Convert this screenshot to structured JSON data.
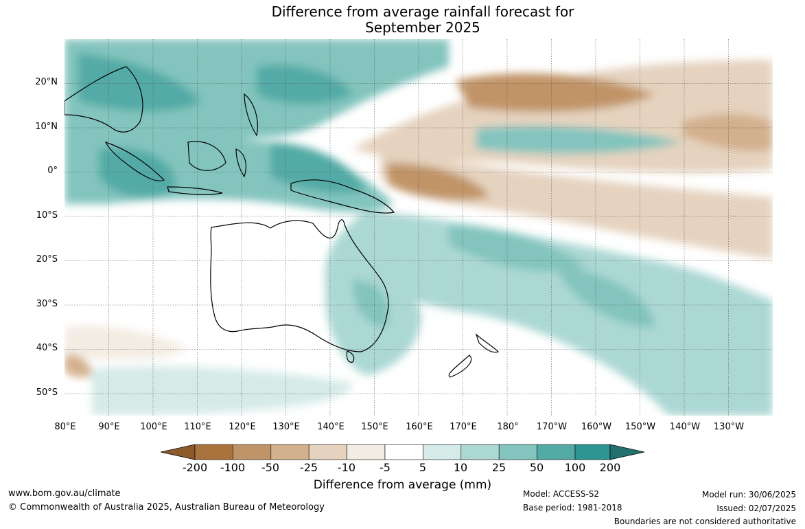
{
  "title": {
    "line1": "Difference from average rainfall forecast for",
    "line2": "September 2025"
  },
  "map": {
    "projection": "equirectangular",
    "lon_range": [
      80,
      240
    ],
    "lat_range": [
      -55,
      30
    ],
    "gridlines": true,
    "lat_ticks": [
      "20°N",
      "10°N",
      "0°",
      "10°S",
      "20°S",
      "30°S",
      "40°S",
      "50°S"
    ],
    "lon_ticks": [
      "80°E",
      "90°E",
      "100°E",
      "110°E",
      "120°E",
      "130°E",
      "140°E",
      "150°E",
      "160°E",
      "170°E",
      "180°",
      "170°W",
      "160°W",
      "150°W",
      "140°W",
      "130°W"
    ]
  },
  "colorbar": {
    "labels": [
      "-200",
      "-100",
      "-50",
      "-25",
      "-10",
      "-5",
      "5",
      "10",
      "25",
      "50",
      "100",
      "200"
    ],
    "colors": [
      "#8c5a2b",
      "#aa733e",
      "#c19467",
      "#d3b08e",
      "#e5d3bf",
      "#f3ece3",
      "#ffffff",
      "#d5ebe8",
      "#acd8d4",
      "#83c4be",
      "#53aaa6",
      "#2f9590",
      "#23716e"
    ],
    "extend": "both",
    "title": "Difference from average (mm)"
  },
  "footer": {
    "website": "www.bom.gov.au/climate",
    "copyright": "© Commonwealth of Australia 2025, Australian Bureau of Meteorology",
    "model": "Model: ACCESS-S2",
    "base_period": "Base period: 1981-2018",
    "model_run": "Model run: 30/06/2025",
    "issued": "Issued: 02/07/2025",
    "disclaimer": "Boundaries are not considered authoritative"
  }
}
